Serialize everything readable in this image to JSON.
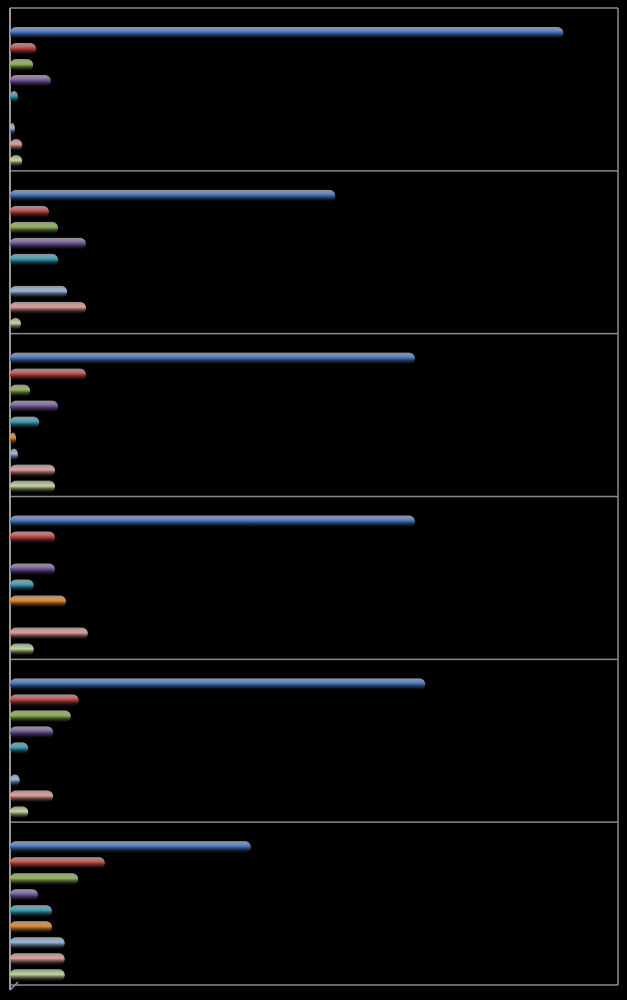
{
  "chart_data": {
    "type": "bar",
    "orientation": "horizontal",
    "categories": [
      null,
      null,
      null,
      null,
      null,
      null
    ],
    "xlim": [
      0,
      100
    ],
    "grid": true,
    "background": "#000000",
    "series": [
      {
        "color": "#3b6fc0",
        "values": [
          91,
          53.5,
          66.6,
          66.6,
          68.3,
          39.6
        ]
      },
      {
        "color": "#c0403c",
        "values": [
          4.3,
          6.4,
          12.5,
          7.4,
          11.3,
          15.6
        ]
      },
      {
        "color": "#8bb04a",
        "values": [
          3.8,
          7.9,
          3.3,
          0,
          10,
          11.2
        ]
      },
      {
        "color": "#6e509a",
        "values": [
          6.7,
          12.5,
          7.9,
          7.4,
          7.1,
          4.6
        ]
      },
      {
        "color": "#2f9ab5",
        "values": [
          1.3,
          7.9,
          4.8,
          3.9,
          3,
          6.9
        ]
      },
      {
        "color": "#e8821e",
        "values": [
          0,
          0,
          1,
          9.2,
          0,
          6.9
        ]
      },
      {
        "color": "#93aede",
        "values": [
          0.8,
          9.4,
          1.3,
          0,
          1.6,
          9
        ]
      },
      {
        "color": "#e49696",
        "values": [
          2,
          12.5,
          7.4,
          12.8,
          7.1,
          9
        ]
      },
      {
        "color": "#bfd795",
        "values": [
          2,
          1.8,
          7.4,
          3.9,
          3,
          9
        ]
      }
    ]
  }
}
